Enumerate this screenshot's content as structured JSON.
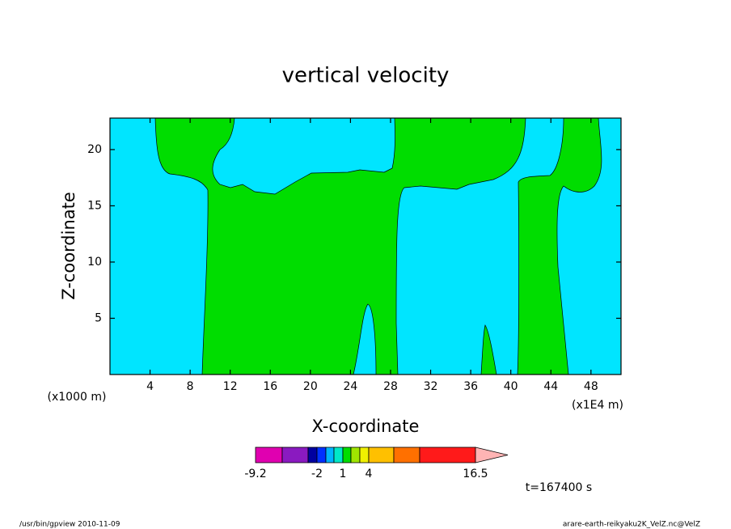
{
  "chart_data": {
    "type": "contour",
    "title": "vertical velocity",
    "xlabel": "X-coordinate",
    "ylabel": "Z-coordinate",
    "x_unit_note": "(x1000 m)",
    "x_scale_note": "(x1E4 m)",
    "time_note": "t=167400 s",
    "footer_left": "/usr/bin/gpview   2010-11-09",
    "footer_right": "arare-earth-reikyaku2K_VelZ.nc@VelZ",
    "xlim": [
      0,
      51
    ],
    "xticks": [
      4,
      8,
      12,
      16,
      20,
      24,
      28,
      32,
      36,
      40,
      44,
      48
    ],
    "ylim": [
      0,
      22.8
    ],
    "yticks": [
      5,
      10,
      15,
      20
    ],
    "colorbar": {
      "colors": [
        "#e000b0",
        "#8a1ac0",
        "#0000a0",
        "#0030ff",
        "#00b4ff",
        "#00e8c8",
        "#00dd00",
        "#a0e600",
        "#f0f000",
        "#ffc000",
        "#ff7000",
        "#ff1a1a",
        "#ff8080",
        "#ffb4b4"
      ],
      "ticks": [
        -9.2,
        -2,
        1,
        4,
        16.5
      ]
    }
  }
}
